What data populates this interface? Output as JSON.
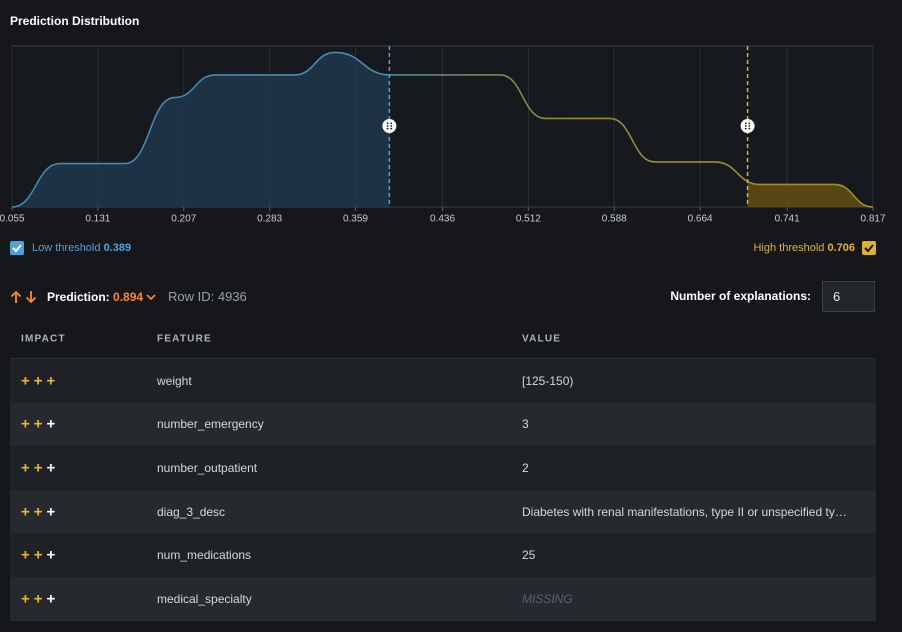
{
  "chart_data": {
    "type": "area",
    "title": "Prediction Distribution",
    "x": [
      0.055,
      0.0975,
      0.155,
      0.199,
      0.235,
      0.305,
      0.341,
      0.39,
      0.487,
      0.527,
      0.584,
      0.624,
      0.677,
      0.717,
      0.783,
      0.817
    ],
    "values": [
      0,
      0.27,
      0.27,
      0.68,
      0.82,
      0.82,
      0.96,
      0.82,
      0.82,
      0.55,
      0.55,
      0.28,
      0.28,
      0.14,
      0.14,
      0
    ],
    "xlim": [
      0.055,
      0.817
    ],
    "ylim": [
      0,
      1
    ],
    "xticks": [
      0.055,
      0.131,
      0.207,
      0.283,
      0.359,
      0.436,
      0.512,
      0.588,
      0.664,
      0.741,
      0.817
    ],
    "grid": true,
    "low_threshold": {
      "label": "Low threshold",
      "value": 0.389,
      "color": "#4aa3df"
    },
    "high_threshold": {
      "label": "High threshold",
      "value": 0.706,
      "color": "#e0b12a"
    }
  },
  "prediction": {
    "label": "Prediction:",
    "value": 0.894,
    "row_id_label": "Row ID:",
    "row_id": 4936
  },
  "explanations": {
    "label": "Number of explanations:",
    "value": 6
  },
  "table": {
    "headers": [
      "IMPACT",
      "FEATURE",
      "VALUE"
    ],
    "rows": [
      {
        "impact": "+++",
        "strength": 3,
        "feature": "weight",
        "value": "[125-150)"
      },
      {
        "impact": "+++",
        "strength": 2,
        "feature": "number_emergency",
        "value": "3"
      },
      {
        "impact": "+++",
        "strength": 2,
        "feature": "number_outpatient",
        "value": "2"
      },
      {
        "impact": "+++",
        "strength": 2,
        "feature": "diag_3_desc",
        "value": "Diabetes with renal manifestations, type II or unspecified ty…"
      },
      {
        "impact": "+++",
        "strength": 2,
        "feature": "num_medications",
        "value": "25"
      },
      {
        "impact": "+++",
        "strength": 2,
        "feature": "medical_specialty",
        "value": "MISSING"
      }
    ]
  }
}
